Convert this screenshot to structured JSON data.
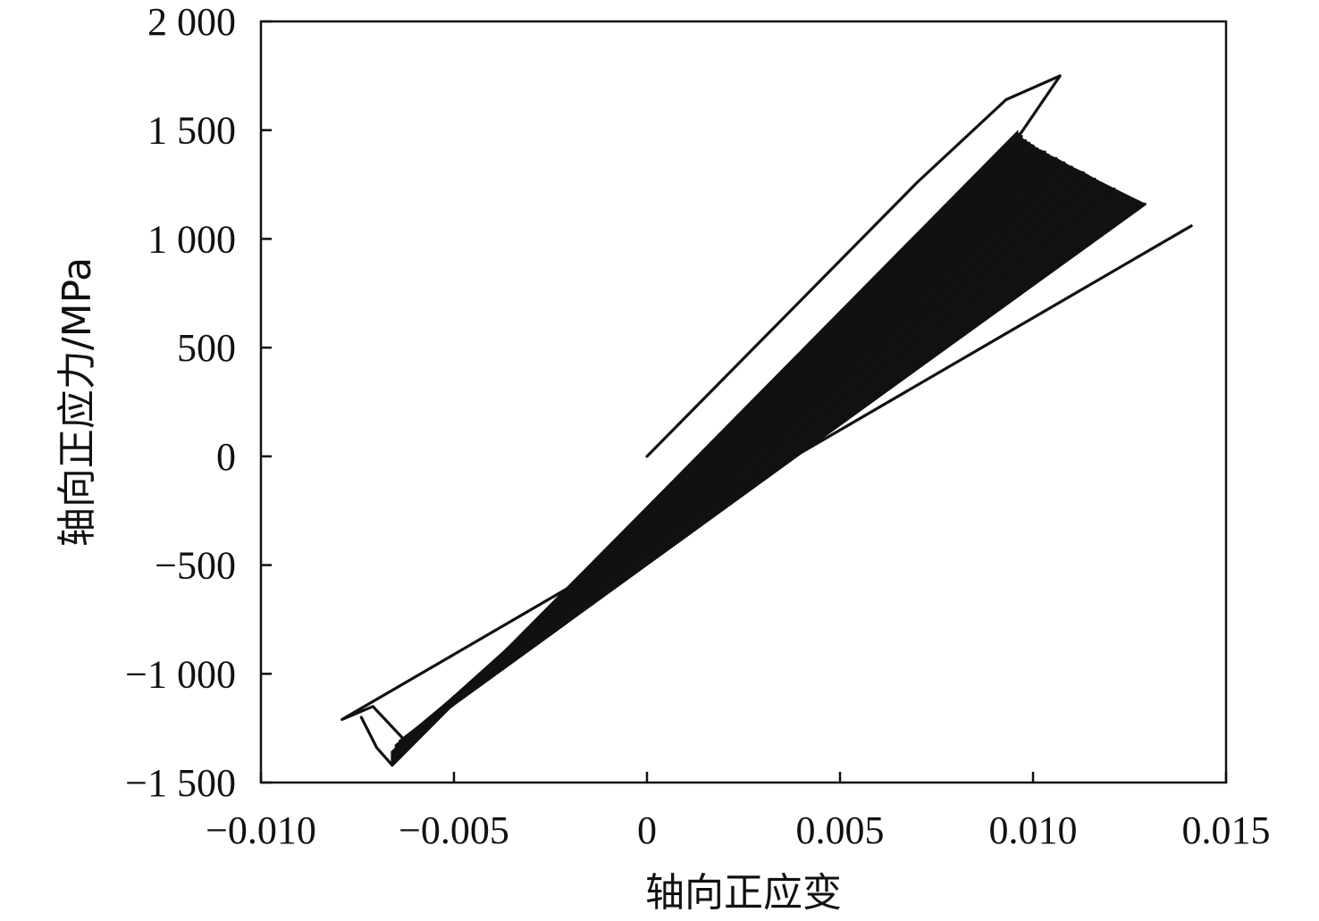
{
  "chart_data": {
    "type": "line",
    "title": "",
    "xlabel": "轴向正应变",
    "ylabel": "轴向正应力/MPa",
    "xlim": [
      -0.01,
      0.015
    ],
    "ylim": [
      -1500,
      2000
    ],
    "grid": false,
    "legend": "none",
    "x_ticks": [
      -0.01,
      -0.005,
      0,
      0.005,
      0.01,
      0.015
    ],
    "x_tick_labels": [
      "−0.010",
      "−0.005",
      "0",
      "0.005",
      "0.010",
      "0.015"
    ],
    "y_ticks": [
      2000,
      1500,
      1000,
      500,
      0,
      -500,
      -1000,
      -1500
    ],
    "y_tick_labels": [
      "2 000",
      "1 500",
      "1 000",
      "500",
      "0",
      "−500",
      "−1 000",
      "−1 500"
    ],
    "line_color": "#111111",
    "series": [
      {
        "x": [
          0.0,
          0.007,
          0.0093,
          0.0107,
          0.0097,
          -0.0066,
          -0.007,
          -0.0074
        ],
        "y": [
          0,
          1260,
          1640,
          1750,
          1490,
          -1420,
          -1340,
          -1200
        ]
      },
      {
        "x": [
          0.0141,
          -0.0079,
          -0.0071,
          -0.0062
        ],
        "y": [
          1060,
          -1210,
          -1150,
          -1320
        ]
      }
    ],
    "cycle_band": {
      "upper_tips": [
        [
          0.0129,
          1160
        ],
        [
          0.0121,
          1230
        ],
        [
          0.0116,
          1275
        ],
        [
          0.0113,
          1305
        ],
        [
          0.011,
          1330
        ],
        [
          0.0108,
          1350
        ],
        [
          0.0106,
          1370
        ],
        [
          0.0104,
          1385
        ],
        [
          0.0103,
          1400
        ],
        [
          0.0101,
          1415
        ],
        [
          0.01,
          1428
        ],
        [
          0.0099,
          1440
        ],
        [
          0.0098,
          1452
        ],
        [
          0.0097,
          1462
        ],
        [
          0.0097,
          1472
        ],
        [
          0.0096,
          1482
        ]
      ],
      "lower_tips": [
        [
          -0.0063,
          -1300
        ],
        [
          -0.0064,
          -1310
        ],
        [
          -0.0064,
          -1320
        ],
        [
          -0.0065,
          -1330
        ],
        [
          -0.0065,
          -1340
        ],
        [
          -0.0065,
          -1350
        ],
        [
          -0.0066,
          -1360
        ],
        [
          -0.0066,
          -1370
        ],
        [
          -0.0066,
          -1378
        ],
        [
          -0.0066,
          -1386
        ],
        [
          -0.0066,
          -1394
        ],
        [
          -0.0066,
          -1402
        ],
        [
          -0.0066,
          -1408
        ],
        [
          -0.0066,
          -1414
        ],
        [
          -0.0066,
          -1418
        ],
        [
          -0.0066,
          -1420
        ]
      ]
    }
  }
}
